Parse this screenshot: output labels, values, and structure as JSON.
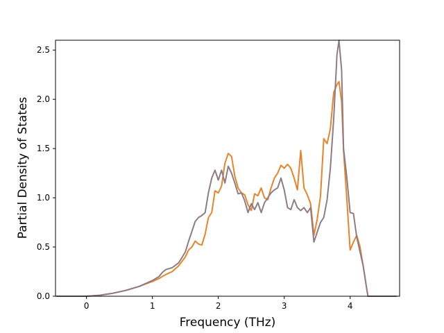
{
  "chart_data": {
    "type": "line",
    "title": "",
    "xlabel": "Frequency (THz)",
    "ylabel": "Partial Density of States",
    "xlim": [
      -0.47,
      4.75
    ],
    "ylim": [
      0,
      2.6
    ],
    "xticks": [
      0,
      1,
      2,
      3,
      4
    ],
    "xtick_labels": [
      "0",
      "1",
      "2",
      "3",
      "4"
    ],
    "yticks": [
      0,
      0.5,
      1.0,
      1.5,
      2.0,
      2.5
    ],
    "ytick_labels": [
      "0.0",
      "0.5",
      "1.0",
      "1.5",
      "2.0",
      "2.5"
    ],
    "grid": false,
    "legend": "none",
    "series": [
      {
        "color": "#e8832a",
        "points": [
          [
            -0.45,
            0
          ],
          [
            0,
            0
          ],
          [
            0.2,
            0.01
          ],
          [
            0.4,
            0.03
          ],
          [
            0.6,
            0.06
          ],
          [
            0.8,
            0.1
          ],
          [
            1.0,
            0.15
          ],
          [
            1.1,
            0.18
          ],
          [
            1.2,
            0.22
          ],
          [
            1.3,
            0.25
          ],
          [
            1.4,
            0.31
          ],
          [
            1.5,
            0.4
          ],
          [
            1.55,
            0.47
          ],
          [
            1.6,
            0.5
          ],
          [
            1.65,
            0.56
          ],
          [
            1.7,
            0.53
          ],
          [
            1.75,
            0.52
          ],
          [
            1.8,
            0.63
          ],
          [
            1.85,
            0.8
          ],
          [
            1.9,
            0.85
          ],
          [
            1.95,
            1.07
          ],
          [
            2.0,
            1.05
          ],
          [
            2.05,
            1.12
          ],
          [
            2.1,
            1.35
          ],
          [
            2.15,
            1.45
          ],
          [
            2.2,
            1.42
          ],
          [
            2.25,
            1.22
          ],
          [
            2.3,
            1.1
          ],
          [
            2.35,
            1.05
          ],
          [
            2.4,
            1.03
          ],
          [
            2.45,
            0.93
          ],
          [
            2.5,
            0.87
          ],
          [
            2.55,
            1.04
          ],
          [
            2.6,
            1.02
          ],
          [
            2.65,
            1.1
          ],
          [
            2.7,
            1.0
          ],
          [
            2.75,
            0.98
          ],
          [
            2.8,
            1.1
          ],
          [
            2.85,
            1.2
          ],
          [
            2.9,
            1.25
          ],
          [
            2.95,
            1.33
          ],
          [
            3.0,
            1.3
          ],
          [
            3.05,
            1.34
          ],
          [
            3.1,
            1.3
          ],
          [
            3.15,
            1.2
          ],
          [
            3.2,
            1.08
          ],
          [
            3.25,
            1.48
          ],
          [
            3.3,
            1.1
          ],
          [
            3.35,
            1.03
          ],
          [
            3.4,
            0.94
          ],
          [
            3.45,
            0.62
          ],
          [
            3.5,
            0.78
          ],
          [
            3.55,
            1.02
          ],
          [
            3.6,
            1.6
          ],
          [
            3.65,
            1.55
          ],
          [
            3.7,
            1.7
          ],
          [
            3.75,
            2.07
          ],
          [
            3.8,
            2.15
          ],
          [
            3.83,
            2.18
          ],
          [
            3.87,
            1.98
          ],
          [
            3.9,
            1.48
          ],
          [
            3.95,
            0.98
          ],
          [
            4.0,
            0.47
          ],
          [
            4.05,
            0.55
          ],
          [
            4.1,
            0.62
          ],
          [
            4.15,
            0.5
          ],
          [
            4.2,
            0.3
          ],
          [
            4.25,
            0.08
          ],
          [
            4.27,
            0
          ],
          [
            4.7,
            0
          ]
        ]
      },
      {
        "color": "#8e7b84",
        "points": [
          [
            -0.45,
            0
          ],
          [
            0,
            0
          ],
          [
            0.2,
            0.01
          ],
          [
            0.4,
            0.03
          ],
          [
            0.6,
            0.06
          ],
          [
            0.8,
            0.1
          ],
          [
            1.0,
            0.16
          ],
          [
            1.1,
            0.2
          ],
          [
            1.15,
            0.24
          ],
          [
            1.2,
            0.27
          ],
          [
            1.3,
            0.29
          ],
          [
            1.4,
            0.34
          ],
          [
            1.5,
            0.45
          ],
          [
            1.55,
            0.56
          ],
          [
            1.6,
            0.66
          ],
          [
            1.65,
            0.76
          ],
          [
            1.7,
            0.8
          ],
          [
            1.75,
            0.82
          ],
          [
            1.8,
            0.85
          ],
          [
            1.85,
            1.05
          ],
          [
            1.9,
            1.2
          ],
          [
            1.95,
            1.28
          ],
          [
            2.0,
            1.18
          ],
          [
            2.05,
            1.28
          ],
          [
            2.1,
            1.15
          ],
          [
            2.15,
            1.32
          ],
          [
            2.2,
            1.25
          ],
          [
            2.25,
            1.15
          ],
          [
            2.3,
            1.04
          ],
          [
            2.35,
            1.05
          ],
          [
            2.4,
            0.97
          ],
          [
            2.45,
            0.85
          ],
          [
            2.5,
            0.94
          ],
          [
            2.55,
            0.88
          ],
          [
            2.6,
            0.95
          ],
          [
            2.65,
            0.85
          ],
          [
            2.7,
            0.95
          ],
          [
            2.75,
            1.0
          ],
          [
            2.8,
            1.05
          ],
          [
            2.85,
            1.08
          ],
          [
            2.9,
            1.1
          ],
          [
            2.95,
            1.2
          ],
          [
            3.0,
            1.08
          ],
          [
            3.05,
            0.9
          ],
          [
            3.1,
            0.88
          ],
          [
            3.15,
            0.98
          ],
          [
            3.2,
            0.9
          ],
          [
            3.25,
            0.87
          ],
          [
            3.3,
            0.9
          ],
          [
            3.35,
            0.85
          ],
          [
            3.4,
            0.9
          ],
          [
            3.45,
            0.55
          ],
          [
            3.5,
            0.65
          ],
          [
            3.55,
            0.75
          ],
          [
            3.6,
            0.8
          ],
          [
            3.65,
            0.98
          ],
          [
            3.7,
            1.3
          ],
          [
            3.75,
            1.8
          ],
          [
            3.8,
            2.45
          ],
          [
            3.83,
            2.6
          ],
          [
            3.87,
            2.3
          ],
          [
            3.9,
            1.5
          ],
          [
            3.95,
            1.2
          ],
          [
            4.0,
            0.85
          ],
          [
            4.05,
            0.84
          ],
          [
            4.1,
            0.6
          ],
          [
            4.15,
            0.45
          ],
          [
            4.2,
            0.3
          ],
          [
            4.25,
            0.08
          ],
          [
            4.27,
            0
          ],
          [
            4.7,
            0
          ]
        ]
      }
    ]
  }
}
